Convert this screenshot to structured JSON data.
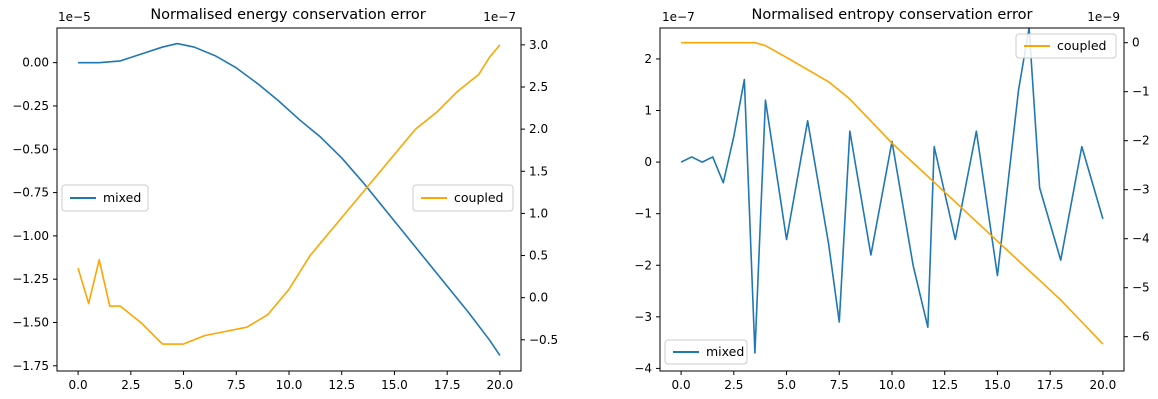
{
  "chart_data": [
    {
      "type": "line",
      "title": "Normalised energy conservation error",
      "xlabel": "",
      "grid": false,
      "x_ticks": [
        "0.0",
        "2.5",
        "5.0",
        "7.5",
        "10.0",
        "12.5",
        "15.0",
        "17.5",
        "20.0"
      ],
      "xlim": [
        -1.0,
        21.0
      ],
      "left_axis": {
        "multiplier": "1e−5",
        "ylim": [
          -1.78,
          0.2
        ],
        "ticks": [
          "0.00",
          "−0.25",
          "−0.50",
          "−0.75",
          "−1.00",
          "−1.25",
          "−1.50",
          "−1.75"
        ],
        "tick_values": [
          0.0,
          -0.25,
          -0.5,
          -0.75,
          -1.0,
          -1.25,
          -1.5,
          -1.75
        ]
      },
      "right_axis": {
        "multiplier": "1e−7",
        "ylim": [
          -0.87,
          3.2
        ],
        "ticks": [
          "3.0",
          "2.5",
          "2.0",
          "1.5",
          "1.0",
          "0.5",
          "0.0",
          "−0.5"
        ],
        "tick_values": [
          3.0,
          2.5,
          2.0,
          1.5,
          1.0,
          0.5,
          0.0,
          -0.5
        ]
      },
      "series": [
        {
          "name": "mixed",
          "axis": "left",
          "color": "#1f77b4",
          "x": [
            0.0,
            1.0,
            2.0,
            3.0,
            4.0,
            4.7,
            5.5,
            6.5,
            7.5,
            8.5,
            9.5,
            10.5,
            11.5,
            12.5,
            13.5,
            14.5,
            15.5,
            16.5,
            17.5,
            18.5,
            19.5,
            20.0
          ],
          "y": [
            0.0,
            0.0,
            0.01,
            0.05,
            0.09,
            0.11,
            0.09,
            0.04,
            -0.03,
            -0.12,
            -0.22,
            -0.33,
            -0.43,
            -0.55,
            -0.69,
            -0.84,
            -0.99,
            -1.14,
            -1.29,
            -1.44,
            -1.6,
            -1.69
          ]
        },
        {
          "name": "coupled",
          "axis": "right",
          "color": "#ffa500",
          "x": [
            0.0,
            0.5,
            1.0,
            1.5,
            2.0,
            3.0,
            4.0,
            5.0,
            6.0,
            7.0,
            8.0,
            9.0,
            10.0,
            11.0,
            12.0,
            13.0,
            14.0,
            15.0,
            16.0,
            17.0,
            18.0,
            19.0,
            19.5,
            20.0
          ],
          "y": [
            0.35,
            -0.07,
            0.45,
            -0.1,
            -0.1,
            -0.3,
            -0.55,
            -0.55,
            -0.45,
            -0.4,
            -0.35,
            -0.2,
            0.1,
            0.5,
            0.8,
            1.1,
            1.4,
            1.7,
            2.0,
            2.2,
            2.45,
            2.65,
            2.85,
            3.0
          ]
        }
      ],
      "legends": [
        {
          "series": "mixed",
          "placement": "center-left"
        },
        {
          "series": "coupled",
          "placement": "center-right"
        }
      ]
    },
    {
      "type": "line",
      "title": "Normalised entropy conservation error",
      "xlabel": "",
      "grid": false,
      "x_ticks": [
        "0.0",
        "2.5",
        "5.0",
        "7.5",
        "10.0",
        "12.5",
        "15.0",
        "17.5",
        "20.0"
      ],
      "xlim": [
        -1.0,
        21.0
      ],
      "left_axis": {
        "multiplier": "1e−7",
        "ylim": [
          -4.05,
          2.6
        ],
        "ticks": [
          "2",
          "1",
          "0",
          "−1",
          "−2",
          "−3",
          "−4"
        ],
        "tick_values": [
          2,
          1,
          0,
          -1,
          -2,
          -3,
          -4
        ]
      },
      "right_axis": {
        "multiplier": "1e−9",
        "ylim": [
          -6.7,
          0.3
        ],
        "ticks": [
          "0",
          "−1",
          "−2",
          "−3",
          "−4",
          "−5",
          "−6"
        ],
        "tick_values": [
          0,
          -1,
          -2,
          -3,
          -4,
          -5,
          -6
        ]
      },
      "series": [
        {
          "name": "mixed",
          "axis": "left",
          "color": "#1f77b4",
          "x": [
            0.0,
            0.5,
            1.0,
            1.5,
            2.0,
            2.5,
            3.0,
            3.5,
            4.0,
            5.0,
            6.0,
            7.0,
            7.5,
            8.0,
            9.0,
            10.0,
            11.0,
            11.7,
            12.0,
            13.0,
            14.0,
            15.0,
            16.0,
            16.5,
            17.0,
            18.0,
            19.0,
            20.0
          ],
          "y": [
            0.0,
            0.1,
            0.0,
            0.1,
            -0.4,
            0.5,
            1.6,
            -3.7,
            1.2,
            -1.5,
            0.8,
            -1.6,
            -3.1,
            0.6,
            -1.8,
            0.4,
            -2.0,
            -3.2,
            0.3,
            -1.5,
            0.6,
            -2.2,
            1.4,
            2.6,
            -0.5,
            -1.9,
            0.3,
            -1.1
          ]
        },
        {
          "name": "coupled",
          "axis": "right",
          "color": "#ffa500",
          "x": [
            0.0,
            1.0,
            2.0,
            3.0,
            3.5,
            4.0,
            5.0,
            6.0,
            7.0,
            8.0,
            9.0,
            10.0,
            11.0,
            12.0,
            13.0,
            14.0,
            15.0,
            16.0,
            17.0,
            18.0,
            19.0,
            20.0
          ],
          "y": [
            0.0,
            0.0,
            0.0,
            0.0,
            0.0,
            -0.06,
            -0.3,
            -0.55,
            -0.8,
            -1.15,
            -1.6,
            -2.05,
            -2.45,
            -2.85,
            -3.25,
            -3.65,
            -4.05,
            -4.45,
            -4.85,
            -5.25,
            -5.7,
            -6.15
          ]
        }
      ],
      "legends": [
        {
          "series": "coupled",
          "placement": "top-right"
        },
        {
          "series": "mixed",
          "placement": "bottom-left"
        }
      ]
    }
  ]
}
